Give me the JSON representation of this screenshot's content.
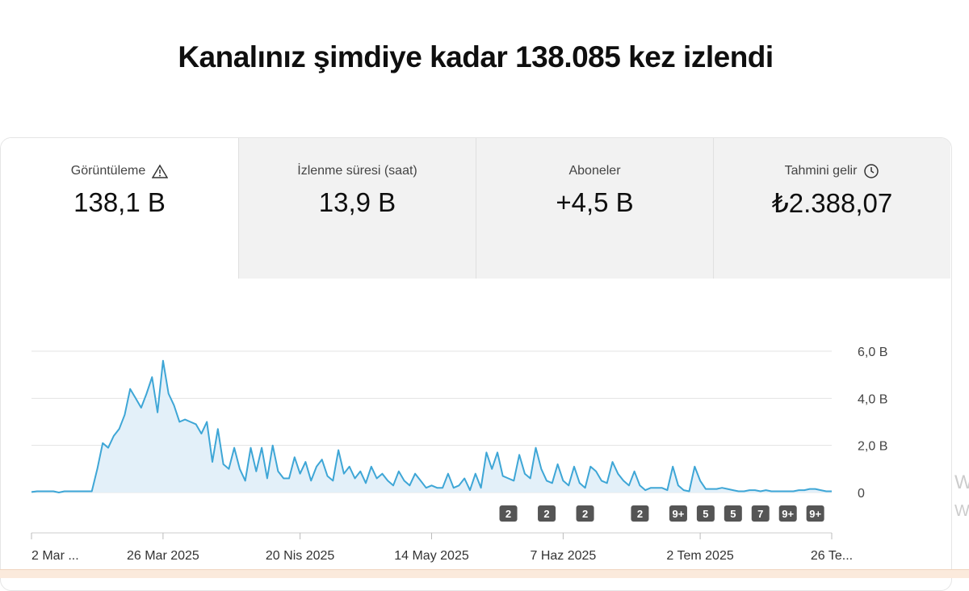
{
  "header": {
    "title": "Kanalınız şimdiye kadar 138.085 kez izlendi"
  },
  "metrics": [
    {
      "label": "Görüntüleme",
      "value": "138,1 B"
    },
    {
      "label": "İzlenme süresi (saat)",
      "value": "13,9 B"
    },
    {
      "label": "Aboneler",
      "value": "+4,5 B"
    },
    {
      "label": "Tahmini gelir",
      "value": "₺2.388,07"
    }
  ],
  "chart_data": {
    "type": "line",
    "color": "#3ea6d6",
    "fill": "#e3f0f9",
    "grid": true,
    "categories": [
      "2 Mar ...",
      null,
      null,
      null,
      null,
      null,
      null,
      null,
      null,
      null,
      null,
      null,
      null,
      null,
      null,
      null,
      null,
      null,
      null,
      null,
      null,
      null,
      null,
      null,
      "26 Mar 2025",
      null,
      null,
      null,
      null,
      null,
      null,
      null,
      null,
      null,
      null,
      null,
      null,
      null,
      null,
      null,
      null,
      null,
      null,
      null,
      null,
      null,
      null,
      null,
      null,
      "20 Nis 2025",
      null,
      null,
      null,
      null,
      null,
      null,
      null,
      null,
      null,
      null,
      null,
      null,
      null,
      null,
      null,
      null,
      null,
      null,
      null,
      null,
      null,
      null,
      null,
      "14 May 2025",
      null,
      null,
      null,
      null,
      null,
      null,
      null,
      null,
      null,
      null,
      null,
      null,
      null,
      null,
      null,
      null,
      null,
      null,
      null,
      null,
      null,
      null,
      null,
      "7 Haz 2025",
      null,
      null,
      null,
      null,
      null,
      null,
      null,
      null,
      null,
      null,
      null,
      null,
      null,
      null,
      null,
      null,
      null,
      null,
      null,
      null,
      null,
      null,
      null,
      null,
      "2 Tem 2025",
      null,
      null,
      null,
      null,
      null,
      null,
      null,
      null,
      null,
      null,
      null,
      null,
      null,
      null,
      null,
      null,
      null,
      null,
      null,
      null,
      null,
      null,
      null,
      "26 Te..."
    ],
    "values": [
      0.02,
      0.05,
      0.05,
      0.05,
      0.05,
      0,
      0.05,
      0.05,
      0.05,
      0.05,
      0.05,
      0.05,
      1,
      2.1,
      1.9,
      2.4,
      2.7,
      3.3,
      4.4,
      4,
      3.6,
      4.2,
      4.9,
      3.4,
      5.6,
      4.2,
      3.7,
      3,
      3.1,
      3,
      2.9,
      2.5,
      3,
      1.3,
      2.7,
      1.2,
      1,
      1.9,
      1,
      0.5,
      1.9,
      0.9,
      1.9,
      0.6,
      2,
      0.9,
      0.6,
      0.6,
      1.5,
      0.8,
      1.3,
      0.5,
      1.1,
      1.4,
      0.7,
      0.5,
      1.8,
      0.8,
      1.1,
      0.6,
      0.9,
      0.4,
      1.1,
      0.6,
      0.8,
      0.5,
      0.3,
      0.9,
      0.5,
      0.3,
      0.8,
      0.5,
      0.2,
      0.3,
      0.2,
      0.2,
      0.8,
      0.2,
      0.3,
      0.6,
      0.1,
      0.8,
      0.2,
      1.7,
      1,
      1.7,
      0.7,
      0.6,
      0.5,
      1.6,
      0.8,
      0.6,
      1.9,
      1,
      0.5,
      0.4,
      1.2,
      0.5,
      0.3,
      1.1,
      0.4,
      0.2,
      1.1,
      0.9,
      0.5,
      0.4,
      1.3,
      0.8,
      0.5,
      0.3,
      0.9,
      0.3,
      0.1,
      0.2,
      0.2,
      0.2,
      0.1,
      1.1,
      0.3,
      0.1,
      0.05,
      1.1,
      0.5,
      0.15,
      0.15,
      0.15,
      0.2,
      0.15,
      0.1,
      0.05,
      0.05,
      0.1,
      0.1,
      0.05,
      0.1,
      0.05,
      0.05,
      0.05,
      0.05,
      0.05,
      0.1,
      0.1,
      0.15,
      0.15,
      0.1,
      0.05,
      0.05
    ],
    "ylim": [
      0,
      6
    ],
    "yticks": [
      0,
      {
        "value": 2,
        "label": "2,0 B"
      },
      {
        "value": 4,
        "label": "4,0 B"
      },
      {
        "value": 6,
        "label": "6,0 B"
      }
    ],
    "annotations": [
      {
        "index": 87,
        "label": "2"
      },
      {
        "index": 94,
        "label": "2"
      },
      {
        "index": 101,
        "label": "2"
      },
      {
        "index": 111,
        "label": "2"
      },
      {
        "index": 118,
        "label": "9+"
      },
      {
        "index": 123,
        "label": "5"
      },
      {
        "index": 128,
        "label": "5"
      },
      {
        "index": 133,
        "label": "7"
      },
      {
        "index": 138,
        "label": "9+"
      },
      {
        "index": 143,
        "label": "9+"
      }
    ]
  },
  "side_text": [
    "W",
    "W"
  ]
}
